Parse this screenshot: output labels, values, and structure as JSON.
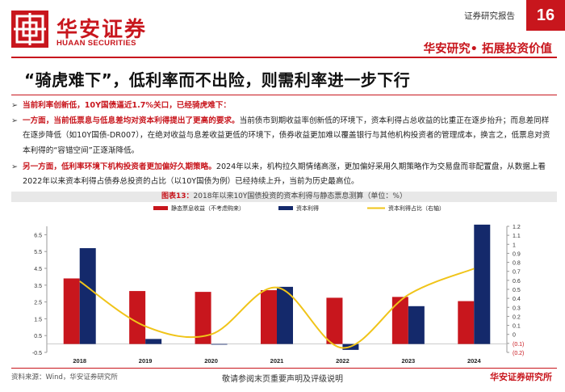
{
  "header": {
    "brand_cn": "华安证券",
    "brand_en": "HUAAN SECURITIES",
    "report_type": "证券研究报告",
    "page_number": "16",
    "slogan": "华安研究• 拓展投资价值",
    "brand_color": "#c8161d"
  },
  "title": "“骑虎难下”，低利率而不出险，则需利率进一步下行",
  "bullets": [
    {
      "bold": "当前利率创新低，10Y国债逼近1.7%关口，已经骑虎难下：",
      "rest": ""
    },
    {
      "bold": "一方面，当前低票息与低息差均对资本利得提出了更高的要求。",
      "rest": "当前债市到期收益率创新低的环境下，资本利得占总收益的比重正在逐步抬升；而息差同样在逐步降低（如10Y国债-DR007），在绝对收益与息差收益更低的环境下，债券收益更加难以覆盖银行与其他机构投资者的管理成本，换言之，低票息对资本利得的“容错空间”正逐渐降低。"
    },
    {
      "bold": "另一方面，低利率环境下机构投资者更加偏好久期策略。",
      "rest": "2024年以来，机构拉久期情绪高涨，更加偏好采用久期策略作为交易盘而非配置盘，从数据上看2022年以来资本利得占债券总投资的占比（以10Y国债为例）已经持续上升，当前为历史最高位。"
    }
  ],
  "chart_caption": {
    "label": "图表13：",
    "text": "2018年以来10Y国债投资的资本利得与静态票息测算（单位：%）"
  },
  "chart_data": {
    "type": "bar",
    "categories": [
      "2018",
      "2019",
      "2020",
      "2021",
      "2022",
      "2023",
      "2024"
    ],
    "series": [
      {
        "name": "静态票息收益（不考虑购来）",
        "type": "bar",
        "axis": "left",
        "color": "#c8161d",
        "values": [
          3.9,
          3.15,
          3.1,
          3.2,
          2.75,
          2.8,
          2.55
        ]
      },
      {
        "name": "资本利得",
        "type": "bar",
        "axis": "left",
        "color": "#14296b",
        "values": [
          5.7,
          0.3,
          0.0,
          3.4,
          -0.35,
          2.25,
          7.1
        ]
      },
      {
        "name": "资本利得占比（右轴）",
        "type": "line",
        "axis": "right",
        "color": "#f0c419",
        "values": [
          0.59,
          0.09,
          0.0,
          0.52,
          -0.15,
          0.44,
          0.73
        ]
      }
    ],
    "y_left": {
      "min": -0.5,
      "max": 7.0,
      "ticks": [
        "-0.5",
        "0.5",
        "1.5",
        "2.5",
        "3.5",
        "4.5",
        "5.5",
        "6.5"
      ],
      "tick_values": [
        -0.5,
        0.5,
        1.5,
        2.5,
        3.5,
        4.5,
        5.5,
        6.5
      ]
    },
    "y_right": {
      "min": -0.2,
      "max": 1.2,
      "ticks": [
        "(0.2)",
        "(0.1)",
        "0",
        "0.1",
        "0.2",
        "0.3",
        "0.4",
        "0.5",
        "0.6",
        "0.7",
        "0.8",
        "0.9",
        "1",
        "1.1",
        "1.2"
      ],
      "tick_values": [
        -0.2,
        -0.1,
        0,
        0.1,
        0.2,
        0.3,
        0.4,
        0.5,
        0.6,
        0.7,
        0.8,
        0.9,
        1.0,
        1.1,
        1.2
      ]
    },
    "legend_position": "top",
    "grid": false
  },
  "footer": {
    "source": "资料来源：Wind，华安证券研究所",
    "disclaimer": "敬请参阅末页重要声明及评级说明",
    "brand": "华安证券研究所"
  }
}
